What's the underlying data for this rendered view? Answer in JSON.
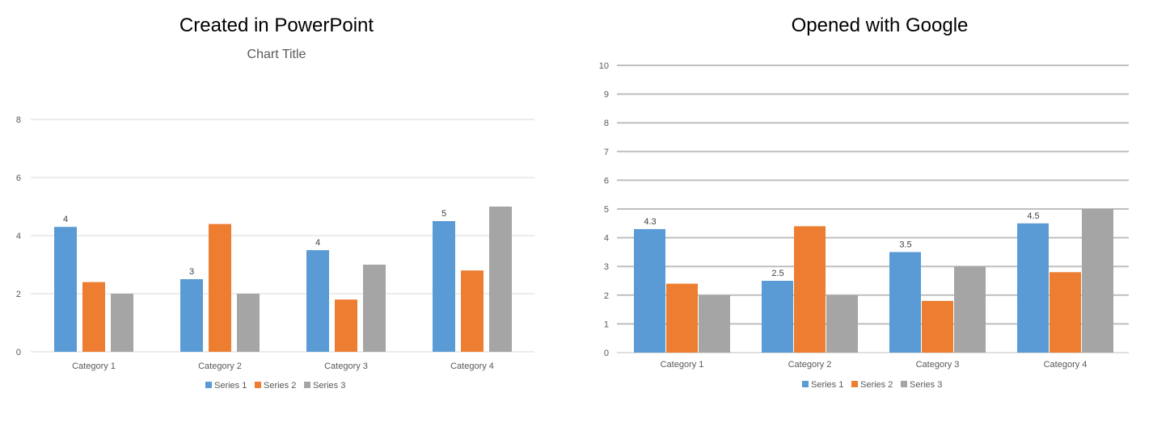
{
  "left_heading": "Created in PowerPoint",
  "right_heading": "Opened with Google",
  "colors": {
    "series1": "#5b9bd5",
    "series2": "#ed7d31",
    "series3": "#a5a5a5"
  },
  "chart_data": [
    {
      "type": "bar",
      "title": "Chart Title",
      "categories": [
        "Category 1",
        "Category 2",
        "Category 3",
        "Category 4"
      ],
      "series": [
        {
          "name": "Series 1",
          "values": [
            4.3,
            2.5,
            3.5,
            4.5
          ]
        },
        {
          "name": "Series 2",
          "values": [
            2.4,
            4.4,
            1.8,
            2.8
          ]
        },
        {
          "name": "Series 3",
          "values": [
            2,
            2,
            3,
            5
          ]
        }
      ],
      "data_labels": [
        "4",
        "3",
        "4",
        "5"
      ],
      "yticks": [
        0,
        2,
        4,
        6,
        8
      ],
      "ylim": [
        0,
        8
      ],
      "grid": true,
      "legend": "bottom"
    },
    {
      "type": "bar",
      "title": "",
      "categories": [
        "Category 1",
        "Category 2",
        "Category 3",
        "Category 4"
      ],
      "series": [
        {
          "name": "Series 1",
          "values": [
            4.3,
            2.5,
            3.5,
            4.5
          ]
        },
        {
          "name": "Series 2",
          "values": [
            2.4,
            4.4,
            1.8,
            2.8
          ]
        },
        {
          "name": "Series 3",
          "values": [
            2,
            2,
            3,
            5
          ]
        }
      ],
      "data_labels": [
        "4.3",
        "2.5",
        "3.5",
        "4.5"
      ],
      "yticks": [
        0,
        1,
        2,
        3,
        4,
        5,
        6,
        7,
        8,
        9,
        10
      ],
      "ylim": [
        0,
        10
      ],
      "grid": true,
      "legend": "bottom"
    }
  ]
}
